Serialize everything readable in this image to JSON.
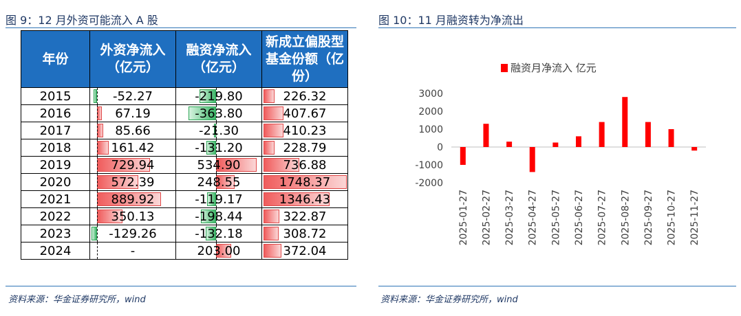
{
  "left": {
    "title": "图 9：12 月外资可能流入 A 股",
    "source": "资料来源：华金证券研究所，wind",
    "table": {
      "headers": [
        "年份",
        "外资净流入（亿元）",
        "融资净流入（亿元）",
        "新成立偏股型基金份额（亿份）"
      ],
      "rows": [
        {
          "year": "2015",
          "foreign": "-52.27",
          "margin": "-219.80",
          "fund": "226.32"
        },
        {
          "year": "2016",
          "foreign": "67.19",
          "margin": "-363.80",
          "fund": "407.67"
        },
        {
          "year": "2017",
          "foreign": "85.66",
          "margin": "-21.30",
          "fund": "410.23"
        },
        {
          "year": "2018",
          "foreign": "161.42",
          "margin": "-131.20",
          "fund": "228.79"
        },
        {
          "year": "2019",
          "foreign": "729.94",
          "margin": "534.90",
          "fund": "736.88"
        },
        {
          "year": "2020",
          "foreign": "572.39",
          "margin": "248.55",
          "fund": "1748.37"
        },
        {
          "year": "2021",
          "foreign": "889.92",
          "margin": "-119.17",
          "fund": "1346.43"
        },
        {
          "year": "2022",
          "foreign": "350.13",
          "margin": "-198.44",
          "fund": "322.87"
        },
        {
          "year": "2023",
          "foreign": "-129.26",
          "margin": "-132.18",
          "fund": "308.72"
        },
        {
          "year": "2024",
          "foreign": "-",
          "margin": "203.00",
          "fund": "372.04"
        }
      ]
    }
  },
  "right": {
    "title": "图 10：11 月融资转为净流出",
    "source": "资料来源：华金证券研究所，wind",
    "chart_data": {
      "type": "bar",
      "legend": "融资月净流入 亿元",
      "legend_position": "top",
      "categories": [
        "2025-01-27",
        "2025-02-27",
        "2025-03-27",
        "2025-04-27",
        "2025-05-27",
        "2025-06-27",
        "2025-07-27",
        "2025-08-27",
        "2025-09-27",
        "2025-10-27",
        "2025-11-27"
      ],
      "series": [
        {
          "name": "融资月净流入 亿元",
          "values": [
            -1000,
            1300,
            300,
            -1400,
            250,
            600,
            1400,
            2800,
            1400,
            1000,
            -200
          ]
        }
      ],
      "ylim": [
        -2000,
        3000
      ],
      "yticks": [
        3000,
        2000,
        1000,
        0,
        -1000,
        -2000
      ],
      "grid": false,
      "color": "#ff0000"
    }
  },
  "colors": {
    "header_bg": "#1f6fc0",
    "title": "#1f3864",
    "rule": "#2e75b6",
    "pos_bar": "#f05c5c",
    "neg_bar": "#3fb86a"
  }
}
